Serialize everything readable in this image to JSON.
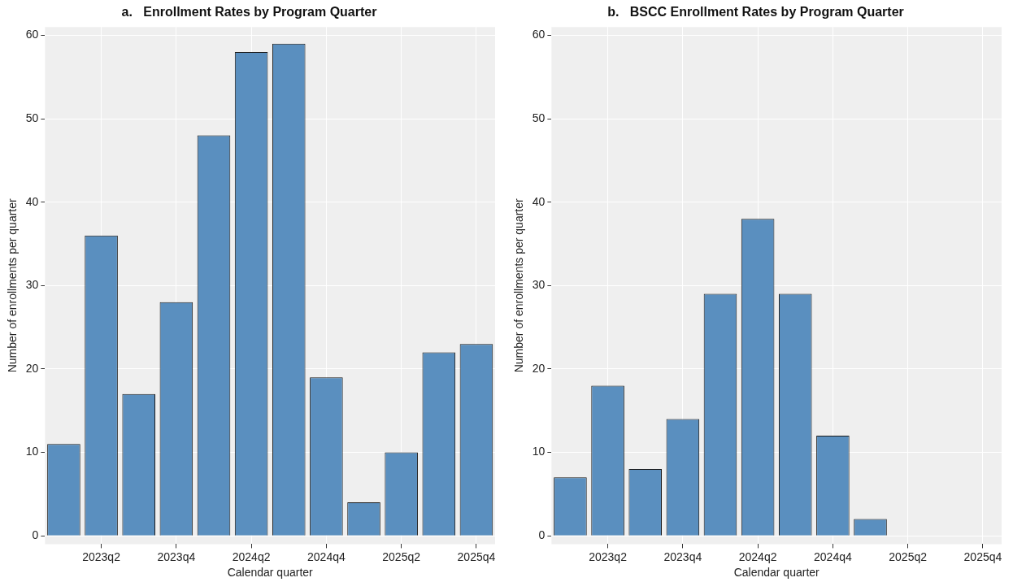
{
  "chart_data": [
    {
      "type": "bar",
      "title": "a.   Enrollment Rates by Program Quarter",
      "xlabel": "Calendar quarter",
      "ylabel": "Number of enrollments per quarter",
      "categories": [
        null,
        "2023q2",
        null,
        "2023q4",
        null,
        "2024q2",
        null,
        "2024q4",
        null,
        "2025q2",
        null,
        "2025q4"
      ],
      "values": [
        11,
        36,
        17,
        28,
        48,
        58,
        59,
        19,
        4,
        10,
        22,
        23
      ],
      "color": "#5a8fbf",
      "ylim": [
        -1,
        61
      ],
      "yticks": [
        0,
        10,
        20,
        30,
        40,
        50,
        60
      ],
      "grid": true,
      "legend": false
    },
    {
      "type": "bar",
      "title": "b.   BSCC Enrollment Rates by Program Quarter",
      "xlabel": "Calendar quarter",
      "ylabel": "Number of enrollments per quarter",
      "categories": [
        null,
        "2023q2",
        null,
        "2023q4",
        null,
        "2024q2",
        null,
        "2024q4",
        null,
        "2025q2",
        null,
        "2025q4"
      ],
      "values": [
        7,
        18,
        8,
        14,
        29,
        38,
        29,
        12,
        2,
        null,
        null,
        null
      ],
      "color": "#5a8fbf",
      "ylim": [
        -1,
        61
      ],
      "yticks": [
        0,
        10,
        20,
        30,
        40,
        50,
        60
      ],
      "grid": true,
      "legend": false
    }
  ]
}
